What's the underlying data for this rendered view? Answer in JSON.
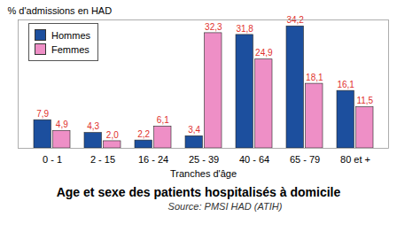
{
  "chart_data": {
    "type": "bar",
    "title": "Age et sexe des patients hospitalisés à domicile",
    "subtitle": "Source: PMSI HAD (ATIH)",
    "y_label": "% d'admissions en HAD",
    "x_label": "Tranches d'âge",
    "categories": [
      "0 - 1",
      "2 - 15",
      "16 - 24",
      "25 - 39",
      "40 - 64",
      "65 - 79",
      "80 et +"
    ],
    "series": [
      {
        "name": "Hommes",
        "color": "#1c4f9e",
        "values": [
          7.9,
          4.3,
          2.2,
          3.4,
          31.8,
          34.2,
          16.1
        ],
        "value_labels": [
          "7,9",
          "4,3",
          "2,2",
          "3,4",
          "31,8",
          "34,2",
          "16,1"
        ]
      },
      {
        "name": "Femmes",
        "color": "#ee8fc6",
        "values": [
          4.9,
          2.0,
          6.1,
          32.3,
          24.9,
          18.1,
          11.5
        ],
        "value_labels": [
          "4,9",
          "2,0",
          "6,1",
          "32,3",
          "24,9",
          "18,1",
          "11,5"
        ]
      }
    ],
    "ylim": [
      0,
      36
    ],
    "tick_labels": "x",
    "data_labels": true,
    "legend": "top-left",
    "grid": false
  }
}
